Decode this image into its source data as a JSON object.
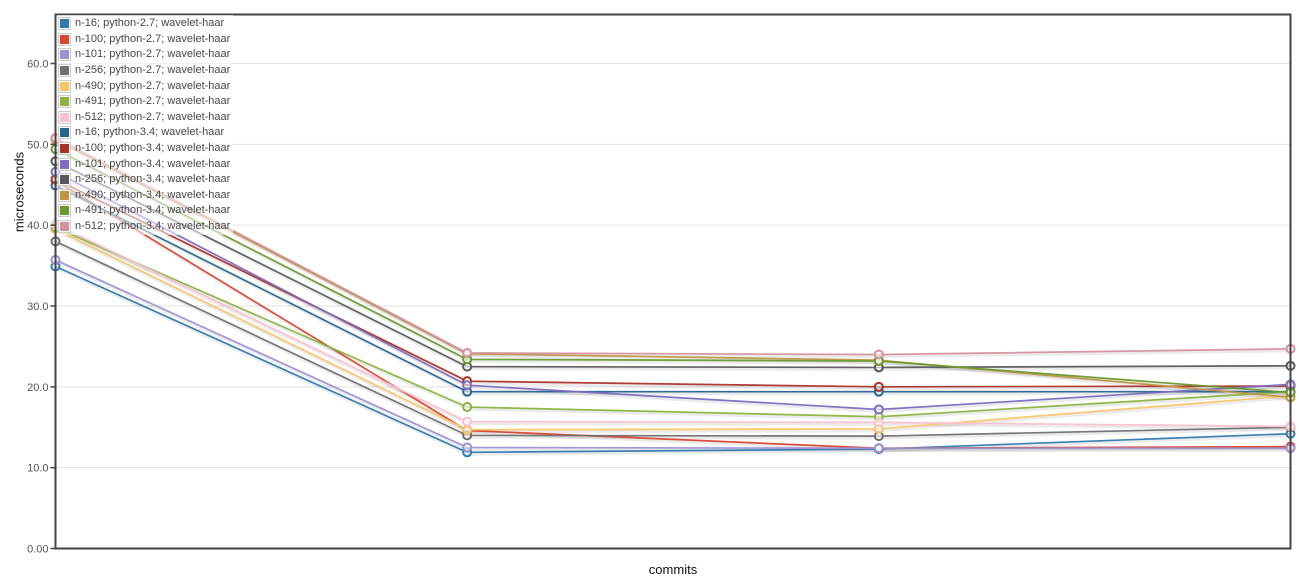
{
  "chart_data": {
    "type": "line",
    "title": "",
    "xlabel": "commits",
    "ylabel": "microseconds",
    "x": [
      0,
      1,
      2,
      3
    ],
    "x_tick_labels": [],
    "ylim": [
      0,
      66.1
    ],
    "y_ticks": [
      {
        "value": 0,
        "label": "0.00"
      },
      {
        "value": 10,
        "label": "10.0"
      },
      {
        "value": 20,
        "label": "20.0"
      },
      {
        "value": 30,
        "label": "30.0"
      },
      {
        "value": 40,
        "label": "40.0"
      },
      {
        "value": 50,
        "label": "50.0"
      },
      {
        "value": 60,
        "label": "60.0"
      }
    ],
    "grid": "horizontal",
    "legend_position": "top-left",
    "marker": "open-circle",
    "series": [
      {
        "name": "n-16; python-2.7; wavelet-haar",
        "color": "#2e7ab0",
        "values": [
          34.9,
          11.9,
          12.3,
          14.2
        ]
      },
      {
        "name": "n-100; python-2.7; wavelet-haar",
        "color": "#d9452f",
        "values": [
          45.5,
          14.6,
          12.4,
          12.6
        ]
      },
      {
        "name": "n-101; python-2.7; wavelet-haar",
        "color": "#9d90d4",
        "values": [
          35.7,
          12.5,
          12.4,
          12.4
        ]
      },
      {
        "name": "n-256; python-2.7; wavelet-haar",
        "color": "#6f6f6f",
        "values": [
          38.0,
          14.0,
          13.9,
          15.0
        ]
      },
      {
        "name": "n-490; python-2.7; wavelet-haar",
        "color": "#f9c567",
        "values": [
          39.5,
          14.7,
          14.8,
          18.9
        ]
      },
      {
        "name": "n-491; python-2.7; wavelet-haar",
        "color": "#8ab43f",
        "values": [
          39.7,
          17.5,
          16.3,
          19.4
        ]
      },
      {
        "name": "n-512; python-2.7; wavelet-haar",
        "color": "#fbc0cd",
        "values": [
          40.1,
          15.7,
          15.6,
          15.1
        ]
      },
      {
        "name": "n-16; python-3.4; wavelet-haar",
        "color": "#24648f",
        "values": [
          44.9,
          19.4,
          19.4,
          19.4
        ]
      },
      {
        "name": "n-100; python-3.4; wavelet-haar",
        "color": "#aa3226",
        "values": [
          45.7,
          20.7,
          20.0,
          20.1
        ]
      },
      {
        "name": "n-101; python-3.4; wavelet-haar",
        "color": "#7d6cc0",
        "values": [
          46.6,
          20.2,
          17.2,
          20.3
        ]
      },
      {
        "name": "n-256; python-3.4; wavelet-haar",
        "color": "#585858",
        "values": [
          47.9,
          22.5,
          22.4,
          22.6
        ]
      },
      {
        "name": "n-490; python-3.4; wavelet-haar",
        "color": "#c0953f",
        "values": [
          50.6,
          24.1,
          23.3,
          18.7
        ]
      },
      {
        "name": "n-491; python-3.4; wavelet-haar",
        "color": "#689a2e",
        "values": [
          49.4,
          23.4,
          23.2,
          19.3
        ]
      },
      {
        "name": "n-512; python-3.4; wavelet-haar",
        "color": "#d5909c",
        "values": [
          50.8,
          24.2,
          24.0,
          24.7
        ]
      }
    ]
  }
}
